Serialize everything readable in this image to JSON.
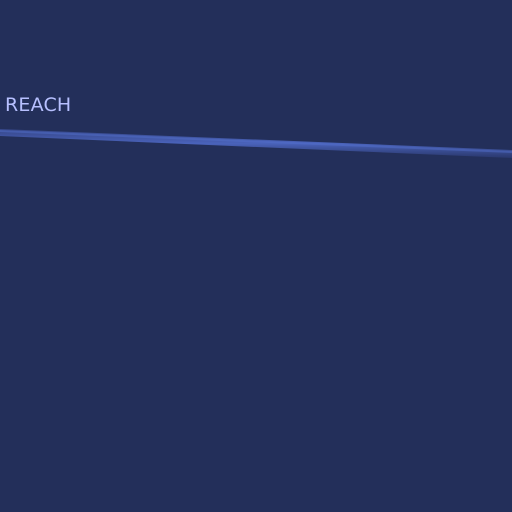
{
  "screen": {
    "label": "REACH",
    "colors": {
      "background": "#232f5a",
      "label_text": "#b7c0ff",
      "divider_glow": "#3f56a6",
      "divider_core": "#2f3f7f"
    }
  }
}
